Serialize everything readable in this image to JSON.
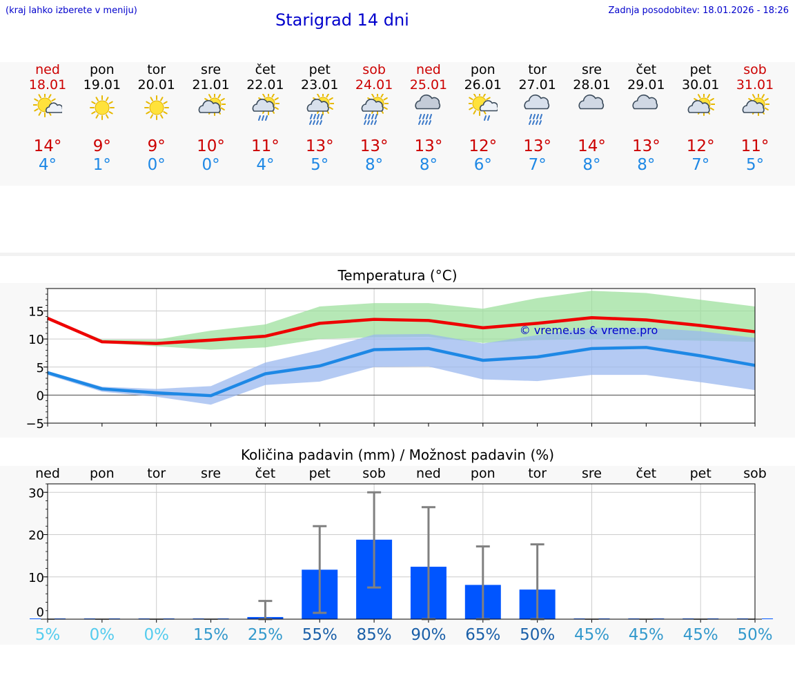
{
  "header": {
    "left_note": "(kraj lahko izberete v meniju)",
    "title": "Starigrad 14 dni",
    "last_update": "Zadnja posodobitev: 18.01.2026 - 18:26"
  },
  "colors": {
    "accent_blue": "#0000cc",
    "weekend_red": "#cc0000",
    "max_line": "#ee0000",
    "min_line": "#1e88e5",
    "max_band": "#9adf9a",
    "min_band": "#97b6ee",
    "bar": "#0055ff",
    "errorbar": "#808080"
  },
  "days": [
    {
      "name": "ned",
      "date": "18.01",
      "weekend": true,
      "icon": "sun-cloud-icon",
      "max": "14°",
      "min": "4°"
    },
    {
      "name": "pon",
      "date": "19.01",
      "weekend": false,
      "icon": "sun-icon",
      "max": "9°",
      "min": "1°"
    },
    {
      "name": "tor",
      "date": "20.01",
      "weekend": false,
      "icon": "sun-icon",
      "max": "9°",
      "min": "0°"
    },
    {
      "name": "sre",
      "date": "21.01",
      "weekend": false,
      "icon": "cloud-sun-icon",
      "max": "10°",
      "min": "0°"
    },
    {
      "name": "čet",
      "date": "22.01",
      "weekend": false,
      "icon": "cloud-sun-light-rain-icon",
      "max": "11°",
      "min": "4°"
    },
    {
      "name": "pet",
      "date": "23.01",
      "weekend": false,
      "icon": "cloud-sun-rain-icon",
      "max": "13°",
      "min": "5°"
    },
    {
      "name": "sob",
      "date": "24.01",
      "weekend": true,
      "icon": "cloud-sun-rain-icon",
      "max": "13°",
      "min": "8°"
    },
    {
      "name": "ned",
      "date": "25.01",
      "weekend": true,
      "icon": "dark-cloud-rain-icon",
      "max": "13°",
      "min": "8°"
    },
    {
      "name": "pon",
      "date": "26.01",
      "weekend": false,
      "icon": "sun-cloud-light-rain-icon",
      "max": "12°",
      "min": "6°"
    },
    {
      "name": "tor",
      "date": "27.01",
      "weekend": false,
      "icon": "cloud-rain-icon",
      "max": "13°",
      "min": "7°"
    },
    {
      "name": "sre",
      "date": "28.01",
      "weekend": false,
      "icon": "cloudy-icon",
      "max": "14°",
      "min": "8°"
    },
    {
      "name": "čet",
      "date": "29.01",
      "weekend": false,
      "icon": "cloudy-icon",
      "max": "13°",
      "min": "8°"
    },
    {
      "name": "pet",
      "date": "30.01",
      "weekend": false,
      "icon": "cloud-sun-icon",
      "max": "12°",
      "min": "7°"
    },
    {
      "name": "sob",
      "date": "31.01",
      "weekend": true,
      "icon": "cloud-sun-icon",
      "max": "11°",
      "min": "5°"
    }
  ],
  "chart_data": [
    {
      "type": "line",
      "title": "Temperatura (°C)",
      "watermark": "© vreme.us & vreme.pro",
      "x": [
        0,
        1,
        2,
        3,
        4,
        5,
        6,
        7,
        8,
        9,
        10,
        11,
        12,
        13
      ],
      "ylim": [
        -5,
        19
      ],
      "yticks": [
        "15",
        "10",
        "5",
        "0",
        "−5"
      ],
      "ytick_values": [
        15,
        10,
        5,
        0,
        -5
      ],
      "grid": true,
      "series": [
        {
          "name": "max",
          "values": [
            13.7,
            9.5,
            9.2,
            9.8,
            10.5,
            12.8,
            13.5,
            13.3,
            12.0,
            12.8,
            13.8,
            13.4,
            12.4,
            11.3
          ],
          "band_low": [
            13.4,
            9.3,
            8.7,
            8.1,
            8.5,
            10.0,
            10.3,
            10.4,
            9.3,
            9.8,
            10.0,
            9.9,
            9.7,
            9.5
          ],
          "band_high": [
            13.8,
            9.9,
            9.9,
            11.5,
            12.6,
            15.8,
            16.4,
            16.4,
            15.4,
            17.3,
            18.6,
            18.2,
            17.0,
            15.8
          ]
        },
        {
          "name": "min",
          "values": [
            4.0,
            1.1,
            0.4,
            -0.1,
            3.8,
            5.2,
            8.1,
            8.3,
            6.2,
            6.8,
            8.3,
            8.5,
            7.0,
            5.3
          ],
          "band_low": [
            3.6,
            0.6,
            -0.3,
            -1.7,
            1.8,
            2.4,
            5.0,
            5.1,
            2.8,
            2.5,
            3.6,
            3.6,
            2.3,
            0.9
          ],
          "band_high": [
            4.3,
            1.5,
            1.1,
            1.6,
            5.8,
            8.0,
            10.8,
            10.9,
            9.2,
            10.7,
            12.0,
            12.0,
            11.4,
            10.2
          ]
        }
      ]
    },
    {
      "type": "bar",
      "title": "Količina padavin (mm) / Možnost padavin (%)",
      "categories": [
        "ned",
        "pon",
        "tor",
        "sre",
        "čet",
        "pet",
        "sob",
        "ned",
        "pon",
        "tor",
        "sre",
        "čet",
        "pet",
        "sob"
      ],
      "values": [
        0,
        0,
        0,
        0,
        0.5,
        11.7,
        18.8,
        12.4,
        8.1,
        7.0,
        0,
        0,
        0,
        0
      ],
      "err_low": [
        0,
        0,
        0,
        0,
        0,
        1.5,
        7.5,
        0,
        0,
        0,
        0,
        0,
        0,
        0
      ],
      "err_high": [
        0,
        0,
        0,
        0,
        4.3,
        22.0,
        30.0,
        26.5,
        17.2,
        17.7,
        0,
        0,
        0,
        0
      ],
      "chance": [
        "5%",
        "0%",
        "0%",
        "15%",
        "25%",
        "55%",
        "85%",
        "90%",
        "65%",
        "50%",
        "45%",
        "45%",
        "45%",
        "50%"
      ],
      "chance_colors": [
        "#55ccee",
        "#55ccee",
        "#55ccee",
        "#3399cc",
        "#3399cc",
        "#1a5fa8",
        "#1a5fa8",
        "#1a5fa8",
        "#1a5fa8",
        "#1a5fa8",
        "#3399cc",
        "#3399cc",
        "#3399cc",
        "#3399cc"
      ],
      "ylim": [
        0,
        32
      ],
      "yticks": [
        "30",
        "20",
        "10",
        "0"
      ],
      "ytick_values": [
        30,
        20,
        10,
        0
      ],
      "grid": true
    }
  ]
}
